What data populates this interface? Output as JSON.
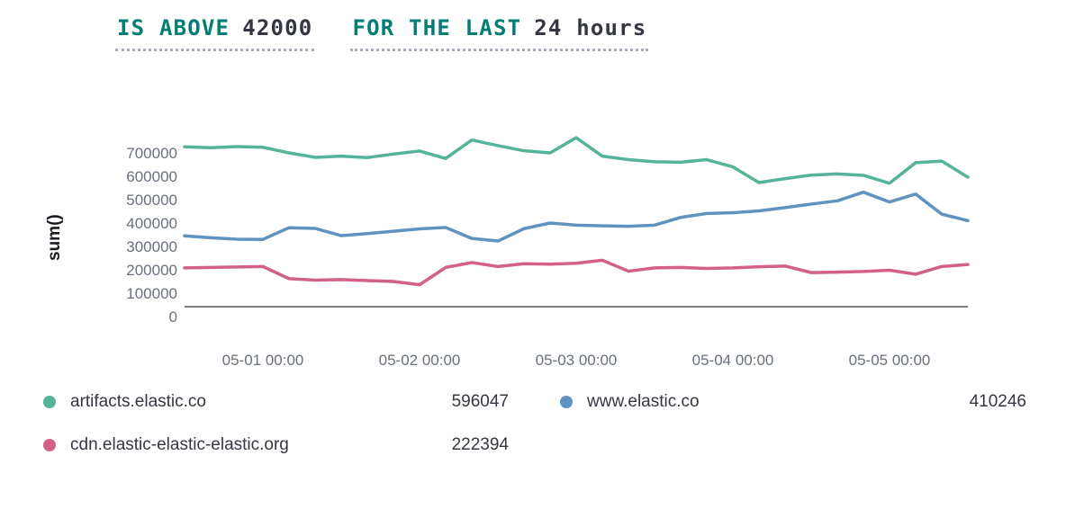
{
  "expression": {
    "threshold": {
      "label": "IS ABOVE",
      "value": "42000"
    },
    "time_window": {
      "label": "FOR THE LAST",
      "value": "24 hours"
    }
  },
  "colors": {
    "expression_keyword": "#017d73",
    "expression_value": "#343741",
    "threshold_line": "#5a606b",
    "axis_text": "#69707d",
    "series_green": "#54b399",
    "series_blue": "#6092c0",
    "series_pink": "#d36086"
  },
  "chart_data": {
    "type": "line",
    "title": "",
    "xlabel": "",
    "ylabel": "sum()",
    "ylim": [
      0,
      800000
    ],
    "y_ticks": [
      0,
      100000,
      200000,
      300000,
      400000,
      500000,
      600000,
      700000
    ],
    "grid": false,
    "legend_position": "bottom",
    "threshold": 42000,
    "x_start": "04-30 12:00",
    "x_interval_hours": 4,
    "x_tick_labels": [
      "05-01 00:00",
      "05-02 00:00",
      "05-03 00:00",
      "05-04 00:00",
      "05-05 00:00"
    ],
    "x_tick_indices": [
      3,
      9,
      15,
      21,
      27
    ],
    "series": [
      {
        "name": "artifacts.elastic.co",
        "color": "#54b399",
        "current_value": 596047,
        "values": [
          726000,
          722000,
          727000,
          724000,
          700000,
          681000,
          686000,
          680000,
          695000,
          708000,
          676000,
          755000,
          731000,
          709000,
          700000,
          765000,
          686000,
          671000,
          662000,
          660000,
          671000,
          640000,
          573000,
          590000,
          605000,
          610000,
          604000,
          570000,
          658000,
          665000,
          596047
        ]
      },
      {
        "name": "www.elastic.co",
        "color": "#6092c0",
        "current_value": 410246,
        "values": [
          345000,
          337000,
          331000,
          330000,
          380000,
          377000,
          346000,
          355000,
          365000,
          375000,
          381000,
          334000,
          323000,
          376000,
          400000,
          391000,
          388000,
          386000,
          391000,
          424000,
          441000,
          444000,
          452000,
          466000,
          481000,
          495000,
          532000,
          490000,
          524000,
          438000,
          410246
        ]
      },
      {
        "name": "cdn.elastic-elastic-elastic.org",
        "color": "#d36086",
        "current_value": 222394,
        "values": [
          208000,
          210000,
          212000,
          214000,
          162000,
          156000,
          158000,
          154000,
          150000,
          136000,
          210000,
          231000,
          214000,
          226000,
          224000,
          228000,
          241000,
          194000,
          208000,
          210000,
          206000,
          208000,
          213000,
          216000,
          188000,
          190000,
          193000,
          198000,
          181000,
          214000,
          222394
        ]
      }
    ]
  },
  "legend": {
    "items": [
      {
        "label": "artifacts.elastic.co",
        "value": "596047",
        "color": "#54b399"
      },
      {
        "label": "www.elastic.co",
        "value": "410246",
        "color": "#6092c0"
      },
      {
        "label": "cdn.elastic-elastic-elastic.org",
        "value": "222394",
        "color": "#d36086"
      }
    ]
  }
}
